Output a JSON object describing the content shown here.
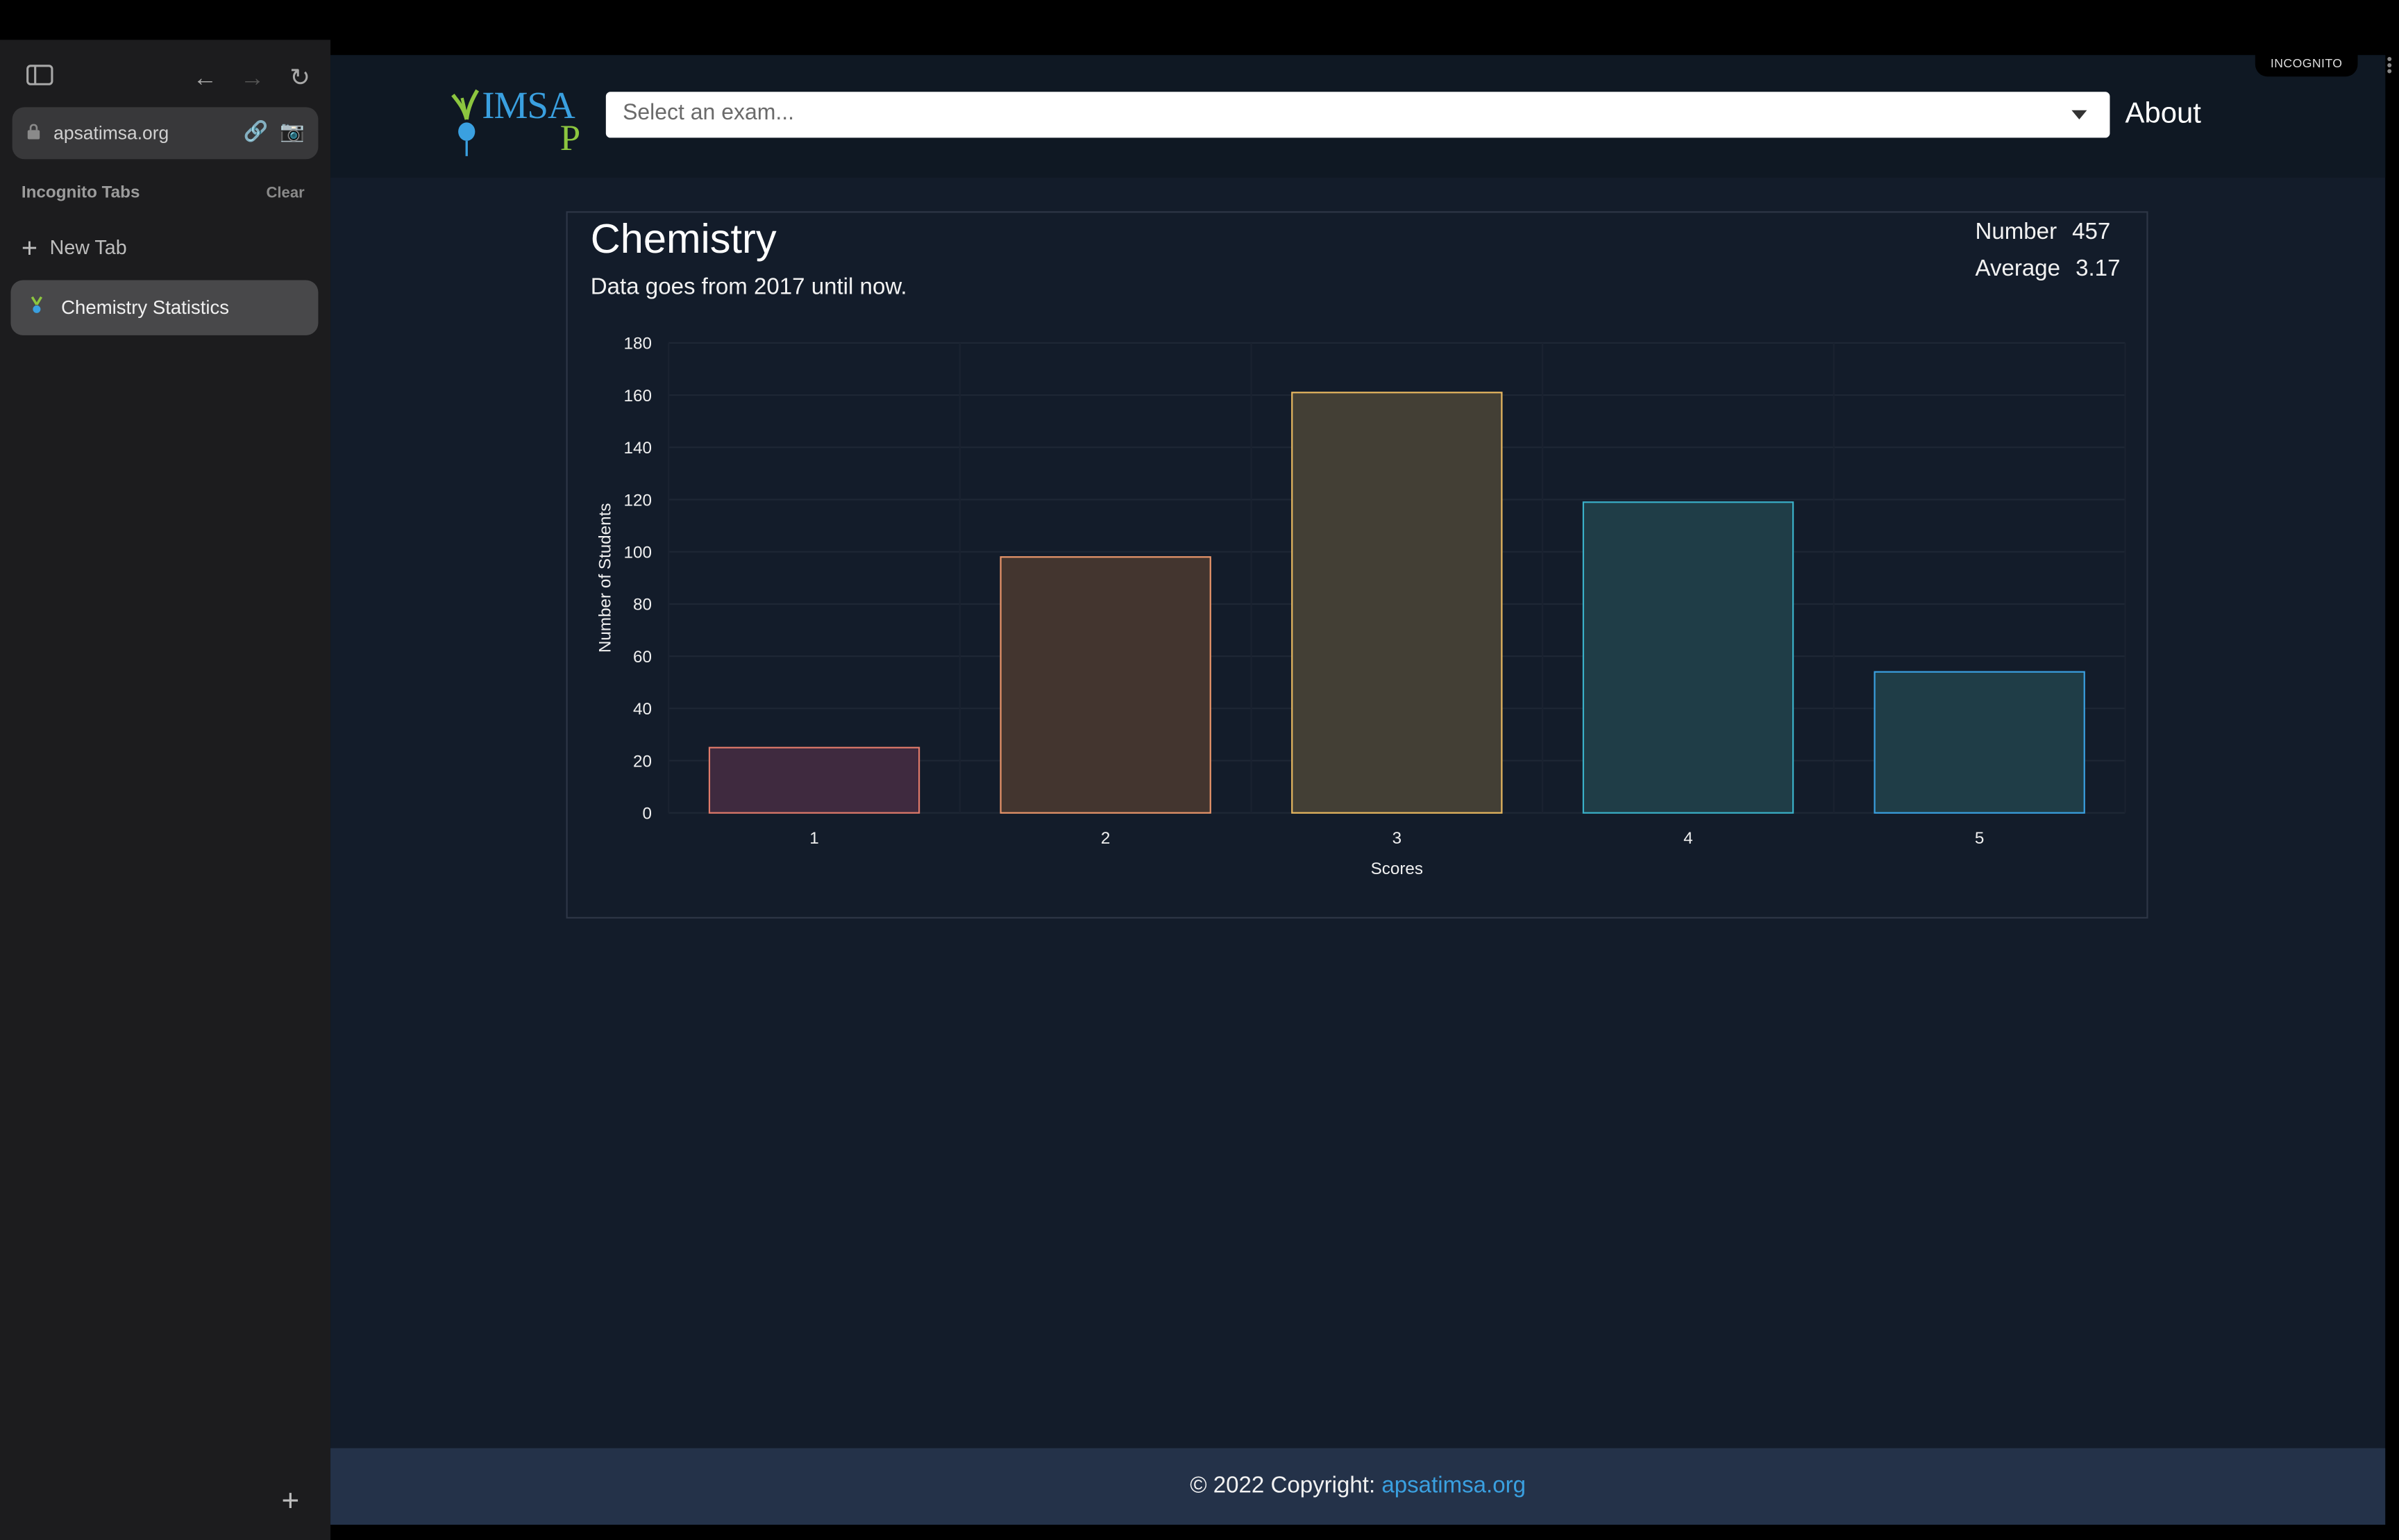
{
  "browser": {
    "url": "apsatimsa.org",
    "incognito_title": "Incognito Tabs",
    "clear_label": "Clear",
    "new_tab_label": "New Tab",
    "active_tab_label": "Chemistry Statistics",
    "incognito_badge": "INCOGNITO"
  },
  "nav": {
    "logo_text_top": "IMSA",
    "logo_text_bottom": "P",
    "select_placeholder": "Select an exam...",
    "about_label": "About"
  },
  "card": {
    "title": "Chemistry",
    "subtitle": "Data goes from 2017 until now.",
    "number_label": "Number",
    "number_value": "457",
    "average_label": "Average",
    "average_value": "3.17"
  },
  "chart_data": {
    "type": "bar",
    "categories": [
      "1",
      "2",
      "3",
      "4",
      "5"
    ],
    "values": [
      25,
      98,
      161,
      119,
      54
    ],
    "xlabel": "Scores",
    "ylabel": "Number of Students",
    "ylim": [
      0,
      180
    ],
    "yticks": [
      0,
      20,
      40,
      60,
      80,
      100,
      120,
      140,
      160,
      180
    ],
    "grid": true,
    "bar_colors": [
      {
        "fill": "#3f2a3f",
        "stroke": "#e07a6a"
      },
      {
        "fill": "#43352f",
        "stroke": "#e8956a"
      },
      {
        "fill": "#433f35",
        "stroke": "#e8b860"
      },
      {
        "fill": "#1f3d47",
        "stroke": "#3ab0c8"
      },
      {
        "fill": "#1f3d47",
        "stroke": "#3aa0e0"
      }
    ]
  },
  "footer": {
    "copyright_text": "© 2022 Copyright: ",
    "link_text": "apsatimsa.org"
  },
  "colors": {
    "page_bg": "#131c2a",
    "nav_bg": "#0f1823",
    "footer_bg": "#243249",
    "accent": "#3aa0e0",
    "logo_green": "#8cc63f"
  }
}
